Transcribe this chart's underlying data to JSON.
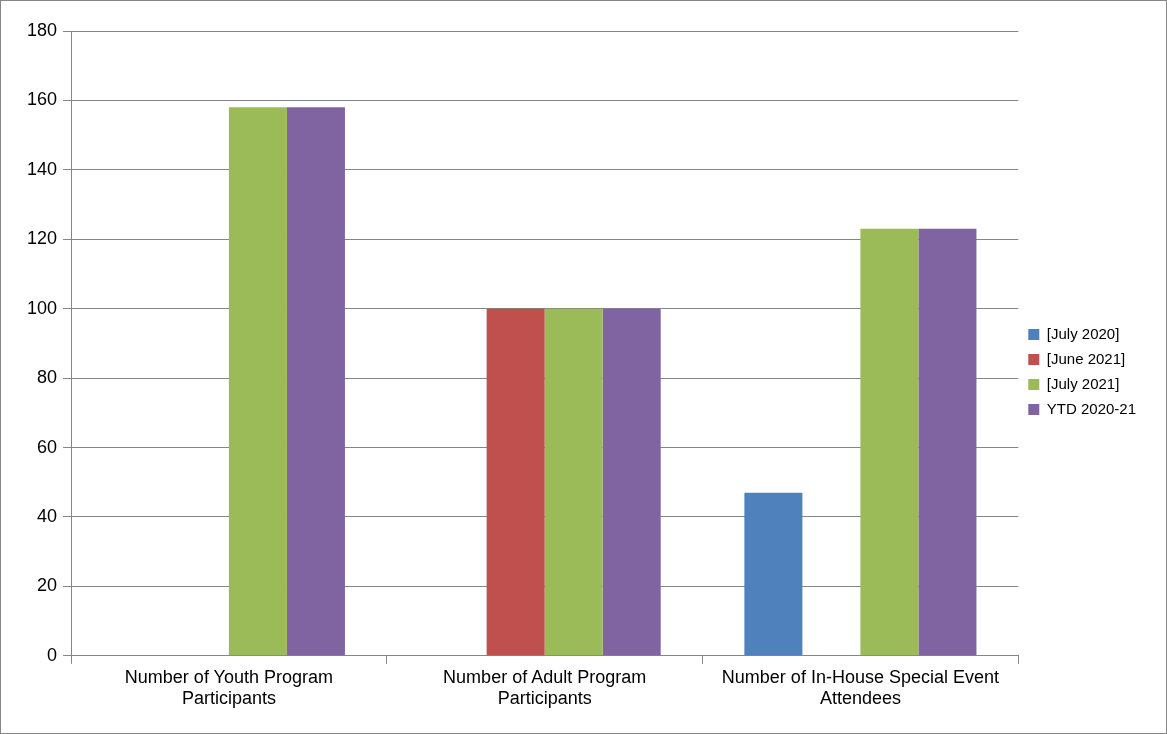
{
  "chart_data": {
    "type": "bar",
    "categories": [
      "Number of Youth Program Participants",
      "Number of Adult Program Participants",
      "Number of In-House Special Event Attendees"
    ],
    "series": [
      {
        "name": "[July 2020]",
        "color": "#4f81bd",
        "values": [
          0,
          0,
          47
        ]
      },
      {
        "name": "[June 2021]",
        "color": "#c0504d",
        "values": [
          0,
          100,
          0
        ]
      },
      {
        "name": "[July 2021]",
        "color": "#9bbb59",
        "values": [
          158,
          100,
          123
        ]
      },
      {
        "name": "YTD 2020-21",
        "color": "#8064a2",
        "values": [
          158,
          100,
          123
        ]
      }
    ],
    "ylim": [
      0,
      180
    ],
    "yticks": [
      0,
      20,
      40,
      60,
      80,
      100,
      120,
      140,
      160,
      180
    ],
    "grid": "y",
    "legend": "right"
  }
}
